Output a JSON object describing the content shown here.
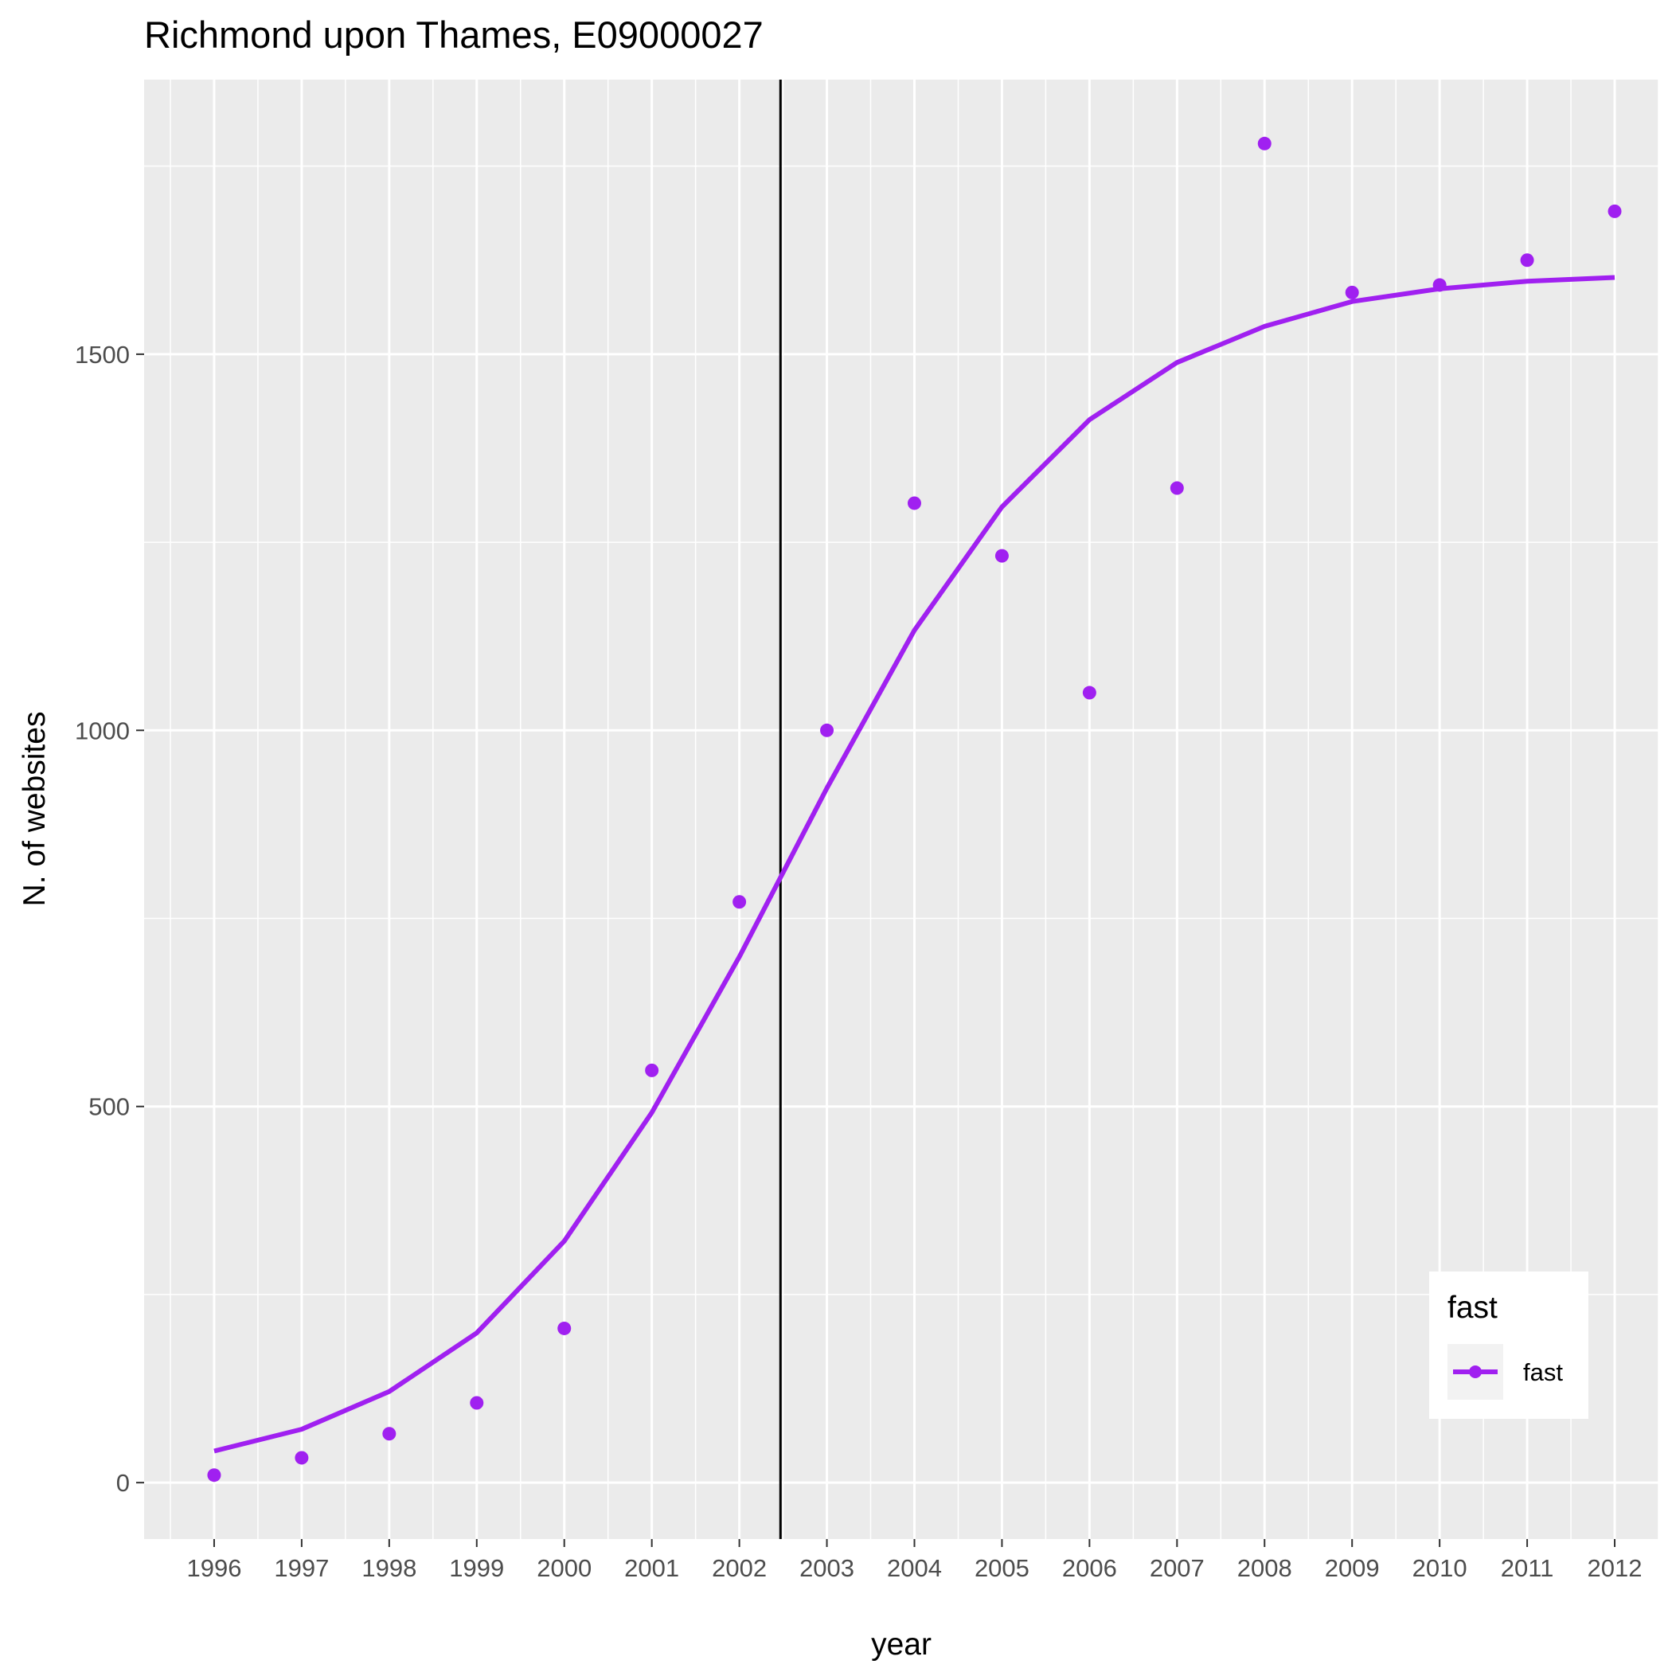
{
  "chart_data": {
    "type": "scatter",
    "title": "Richmond upon Thames, E09000027",
    "xlabel": "year",
    "ylabel": "N. of websites",
    "x": [
      1996,
      1997,
      1998,
      1999,
      2000,
      2001,
      2002,
      2003,
      2004,
      2005,
      2006,
      2007,
      2008,
      2009,
      2010,
      2011,
      2012
    ],
    "xticks": [
      "1996",
      "1997",
      "1998",
      "1999",
      "2000",
      "2001",
      "2002",
      "2003",
      "2004",
      "2005",
      "2006",
      "2007",
      "2008",
      "2009",
      "2010",
      "2011",
      "2012"
    ],
    "yticks": [
      0,
      500,
      1000,
      1500
    ],
    "ytick_labels": [
      "0",
      "500",
      "1000",
      "1500"
    ],
    "xlim": [
      1995.2,
      2012.5
    ],
    "ylim": [
      -75,
      1865
    ],
    "grid": true,
    "series": [
      {
        "name": "fast",
        "color": "#a020f0",
        "points": [
          10,
          33,
          65,
          106,
          205,
          548,
          772,
          1000,
          1302,
          1232,
          1050,
          1322,
          1780,
          1582,
          1592,
          1625,
          1690
        ],
        "smooth_line": [
          42,
          71,
          121,
          199,
          321,
          492,
          699,
          923,
          1133,
          1297,
          1413,
          1489,
          1537,
          1570,
          1587,
          1597,
          1602
        ]
      }
    ],
    "vline": {
      "x": 2002.47,
      "color": "#000000"
    },
    "legend": {
      "title": "fast",
      "entries": [
        "fast"
      ],
      "position": "bottom-right"
    }
  }
}
